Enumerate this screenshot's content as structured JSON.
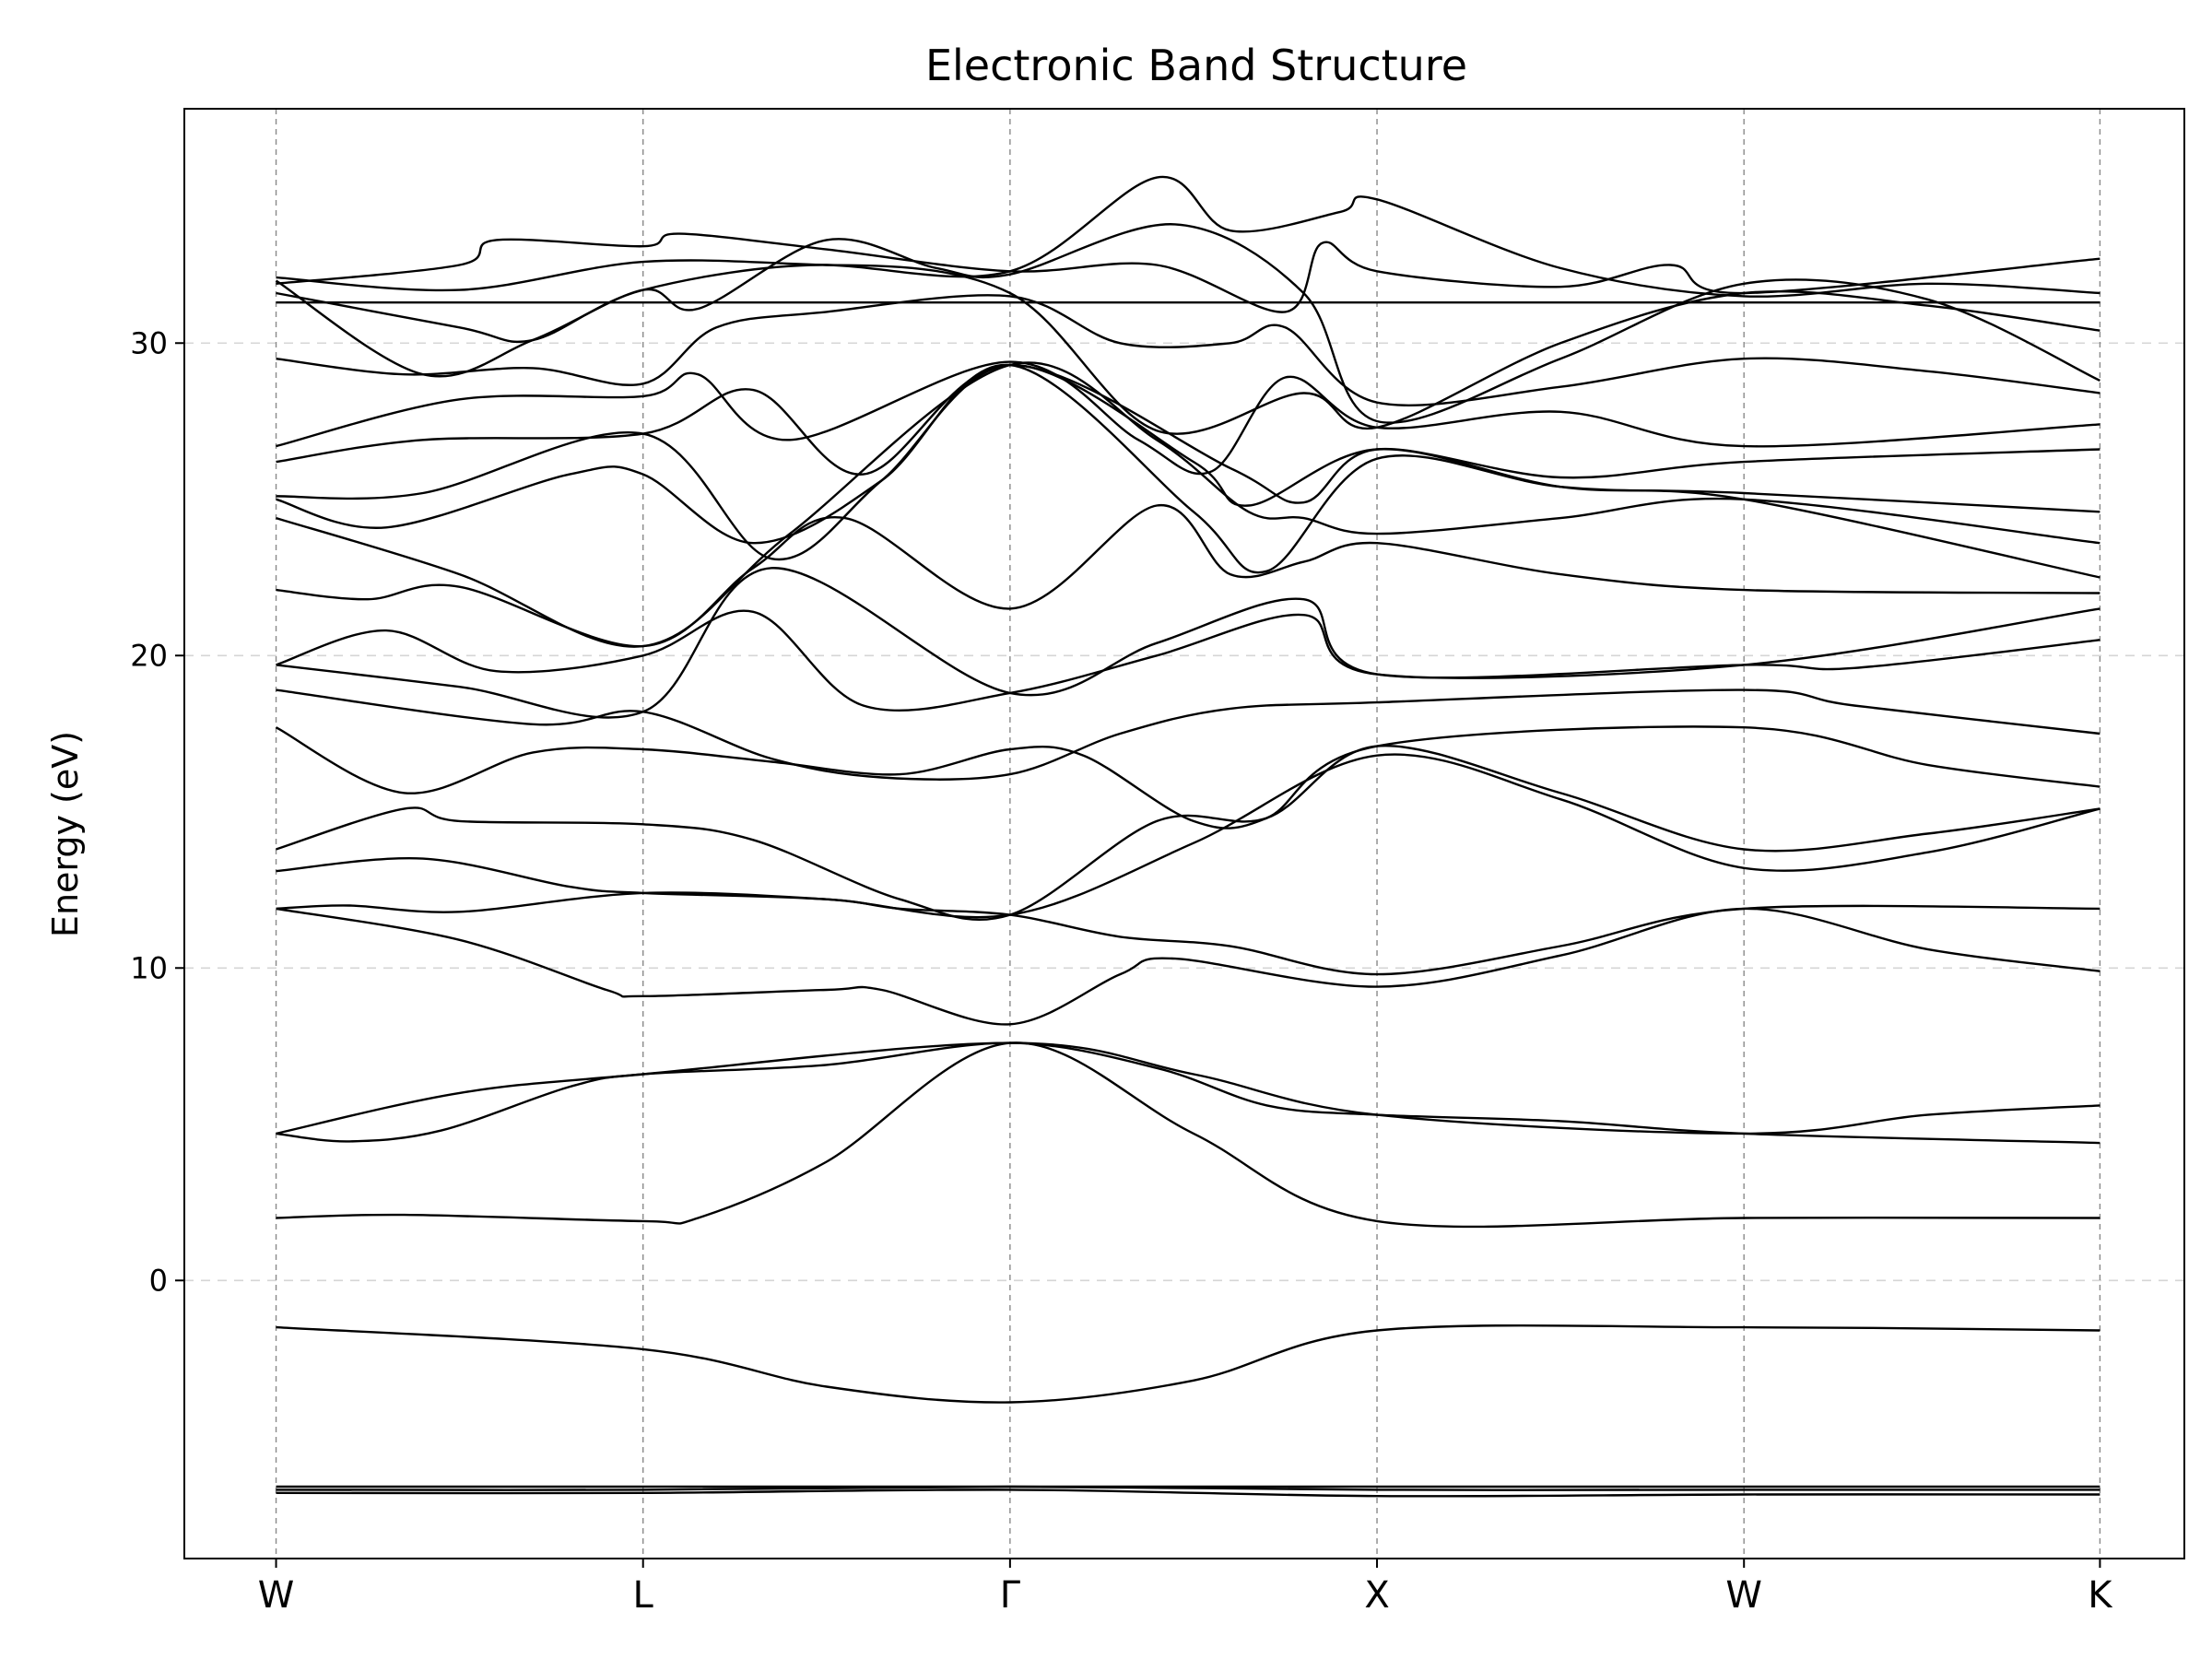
{
  "chart_data": {
    "type": "line",
    "title": "Electronic Band Structure",
    "xlabel": "",
    "ylabel": "Energy (eV)",
    "ylim": [
      -8.9,
      37.5
    ],
    "yticks": [
      0,
      10,
      20,
      30
    ],
    "grid": {
      "horizontal": true,
      "vertical_at_kpoints": true
    },
    "kpoints": [
      "W",
      "L",
      "Γ",
      "X",
      "W",
      "K"
    ],
    "kpath": [
      0,
      1,
      2,
      3,
      4,
      4.97
    ],
    "xlim": [
      -0.25,
      5.2
    ],
    "series": [
      {
        "points": [
          [
            0,
            -6.6
          ],
          [
            1,
            -6.6
          ],
          [
            2,
            -6.6
          ],
          [
            3,
            -6.6
          ],
          [
            4,
            -6.6
          ],
          [
            4.97,
            -6.6
          ]
        ]
      },
      {
        "points": [
          [
            0,
            -6.7
          ],
          [
            1,
            -6.7
          ],
          [
            2,
            -6.6
          ],
          [
            3,
            -6.7
          ],
          [
            4,
            -6.7
          ],
          [
            4.97,
            -6.7
          ]
        ]
      },
      {
        "points": [
          [
            0,
            -6.8
          ],
          [
            1,
            -6.8
          ],
          [
            2,
            -6.7
          ],
          [
            3,
            -6.9
          ],
          [
            4,
            -6.85
          ],
          [
            4.97,
            -6.85
          ]
        ]
      },
      {
        "points": [
          [
            0,
            -1.5
          ],
          [
            1,
            -2.2
          ],
          [
            1.5,
            -3.4
          ],
          [
            2,
            -3.9
          ],
          [
            2.5,
            -3.2
          ],
          [
            3,
            -1.6
          ],
          [
            4,
            -1.5
          ],
          [
            4.97,
            -1.6
          ]
        ]
      },
      {
        "points": [
          [
            0,
            2.0
          ],
          [
            0.35,
            2.1
          ],
          [
            1,
            1.9
          ],
          [
            1.15,
            2.0
          ],
          [
            1.5,
            3.8
          ],
          [
            2,
            7.6
          ],
          [
            2.5,
            4.7
          ],
          [
            3,
            1.9
          ],
          [
            4,
            2.0
          ],
          [
            4.97,
            2.0
          ]
        ]
      },
      {
        "points": [
          [
            0,
            4.7
          ],
          [
            0.2,
            4.45
          ],
          [
            0.45,
            4.8
          ],
          [
            0.8,
            6.2
          ],
          [
            1,
            6.6
          ],
          [
            1.5,
            6.9
          ],
          [
            2,
            7.6
          ],
          [
            2.4,
            6.8
          ],
          [
            2.7,
            5.6
          ],
          [
            3,
            5.3
          ],
          [
            3.5,
            5.1
          ],
          [
            4,
            4.7
          ],
          [
            4.97,
            4.4
          ]
        ]
      },
      {
        "points": [
          [
            0,
            4.7
          ],
          [
            0.5,
            6.0
          ],
          [
            1,
            6.6
          ],
          [
            2,
            7.6
          ],
          [
            2.5,
            6.6
          ],
          [
            3,
            5.3
          ],
          [
            4,
            4.7
          ],
          [
            4.5,
            5.3
          ],
          [
            4.97,
            5.6
          ]
        ]
      },
      {
        "points": [
          [
            0,
            11.9
          ],
          [
            0.5,
            10.9
          ],
          [
            0.9,
            9.3
          ],
          [
            1,
            9.1
          ],
          [
            1.5,
            9.3
          ],
          [
            1.65,
            9.3
          ],
          [
            2,
            8.2
          ],
          [
            2.3,
            9.8
          ],
          [
            2.45,
            10.3
          ],
          [
            3,
            9.4
          ],
          [
            3.5,
            10.4
          ],
          [
            4,
            11.9
          ],
          [
            4.5,
            10.6
          ],
          [
            4.97,
            9.9
          ]
        ]
      },
      {
        "points": [
          [
            0,
            11.9
          ],
          [
            0.2,
            12.0
          ],
          [
            0.5,
            11.8
          ],
          [
            1,
            12.4
          ],
          [
            1.5,
            12.2
          ],
          [
            1.7,
            11.9
          ],
          [
            2,
            11.7
          ],
          [
            2.3,
            11.0
          ],
          [
            2.6,
            10.7
          ],
          [
            3,
            9.8
          ],
          [
            3.5,
            10.7
          ],
          [
            4,
            11.9
          ],
          [
            4.97,
            11.9
          ]
        ]
      },
      {
        "points": [
          [
            0,
            13.1
          ],
          [
            0.4,
            13.5
          ],
          [
            0.8,
            12.6
          ],
          [
            1,
            12.4
          ],
          [
            1.5,
            12.2
          ],
          [
            2,
            11.7
          ],
          [
            2.5,
            14.0
          ],
          [
            3,
            16.8
          ],
          [
            3.5,
            15.4
          ],
          [
            4,
            13.2
          ],
          [
            4.5,
            13.7
          ],
          [
            4.97,
            15.1
          ]
        ]
      },
      {
        "points": [
          [
            0,
            13.8
          ],
          [
            0.35,
            15.1
          ],
          [
            0.5,
            14.7
          ],
          [
            1,
            14.6
          ],
          [
            1.3,
            14.1
          ],
          [
            1.7,
            12.2
          ],
          [
            2,
            11.7
          ],
          [
            2.4,
            14.7
          ],
          [
            2.7,
            14.8
          ],
          [
            3,
            17.1
          ],
          [
            3.5,
            15.6
          ],
          [
            4,
            13.8
          ],
          [
            4.5,
            14.3
          ],
          [
            4.97,
            15.1
          ]
        ]
      },
      {
        "points": [
          [
            0,
            17.7
          ],
          [
            0.35,
            15.6
          ],
          [
            0.7,
            16.9
          ],
          [
            1,
            17.0
          ],
          [
            1.35,
            16.6
          ],
          [
            1.7,
            16.2
          ],
          [
            2,
            17.0
          ],
          [
            2.2,
            16.8
          ],
          [
            2.5,
            14.7
          ],
          [
            2.7,
            14.8
          ],
          [
            3,
            17.1
          ],
          [
            4,
            17.7
          ],
          [
            4.5,
            16.5
          ],
          [
            4.97,
            15.8
          ]
        ]
      },
      {
        "points": [
          [
            0,
            18.9
          ],
          [
            0.7,
            17.8
          ],
          [
            1,
            18.2
          ],
          [
            1.35,
            16.7
          ],
          [
            1.65,
            16.1
          ],
          [
            2,
            16.2
          ],
          [
            2.3,
            17.5
          ],
          [
            2.6,
            18.3
          ],
          [
            3,
            18.5
          ],
          [
            4,
            18.9
          ],
          [
            4.3,
            18.4
          ],
          [
            4.97,
            17.5
          ]
        ]
      },
      {
        "points": [
          [
            0,
            19.7
          ],
          [
            0.3,
            20.8
          ],
          [
            0.6,
            19.5
          ],
          [
            1,
            20.0
          ],
          [
            1.3,
            21.4
          ],
          [
            1.6,
            18.4
          ],
          [
            2,
            18.8
          ],
          [
            2.4,
            20.0
          ],
          [
            2.8,
            21.3
          ],
          [
            3,
            19.4
          ],
          [
            4,
            19.7
          ],
          [
            4.97,
            21.5
          ]
        ]
      },
      {
        "points": [
          [
            0,
            19.7
          ],
          [
            0.5,
            19.0
          ],
          [
            1,
            18.2
          ],
          [
            1.35,
            22.8
          ],
          [
            2,
            18.8
          ],
          [
            2.4,
            20.4
          ],
          [
            2.8,
            21.8
          ],
          [
            3,
            19.4
          ],
          [
            4,
            19.7
          ],
          [
            4.3,
            19.6
          ],
          [
            4.97,
            20.5
          ]
        ]
      },
      {
        "points": [
          [
            0,
            22.1
          ],
          [
            0.25,
            21.8
          ],
          [
            0.5,
            22.2
          ],
          [
            1,
            20.3
          ],
          [
            1.3,
            22.8
          ],
          [
            1.55,
            24.4
          ],
          [
            2,
            21.5
          ],
          [
            2.4,
            24.8
          ],
          [
            2.6,
            22.6
          ],
          [
            2.8,
            23.0
          ],
          [
            3,
            23.6
          ],
          [
            3.5,
            22.6
          ],
          [
            4,
            22.1
          ],
          [
            4.97,
            22.0
          ]
        ]
      },
      {
        "points": [
          [
            0,
            24.4
          ],
          [
            0.5,
            22.6
          ],
          [
            1,
            20.3
          ],
          [
            1.4,
            23.9
          ],
          [
            2,
            29.3
          ],
          [
            2.4,
            26.9
          ],
          [
            2.65,
            24.6
          ],
          [
            2.8,
            24.4
          ],
          [
            3,
            23.9
          ],
          [
            3.5,
            24.4
          ],
          [
            4,
            25.0
          ],
          [
            4.97,
            23.6
          ]
        ]
      },
      {
        "points": [
          [
            0,
            25.0
          ],
          [
            0.3,
            24.1
          ],
          [
            0.8,
            25.8
          ],
          [
            1,
            25.8
          ],
          [
            1.3,
            23.6
          ],
          [
            1.65,
            25.6
          ],
          [
            2,
            29.3
          ],
          [
            2.5,
            24.6
          ],
          [
            2.7,
            22.7
          ],
          [
            3,
            26.3
          ],
          [
            3.5,
            25.4
          ],
          [
            4,
            25.2
          ],
          [
            4.97,
            24.6
          ]
        ]
      },
      {
        "points": [
          [
            0,
            25.1
          ],
          [
            0.4,
            25.2
          ],
          [
            1,
            27.1
          ],
          [
            1.35,
            23.1
          ],
          [
            1.65,
            25.6
          ],
          [
            2,
            29.3
          ],
          [
            2.5,
            26.2
          ],
          [
            2.65,
            24.8
          ],
          [
            3,
            26.6
          ],
          [
            3.5,
            25.4
          ],
          [
            4,
            25.0
          ],
          [
            4.97,
            22.5
          ]
        ]
      },
      {
        "points": [
          [
            0,
            26.2
          ],
          [
            0.4,
            26.9
          ],
          [
            1,
            27.1
          ],
          [
            1.3,
            28.5
          ],
          [
            1.6,
            25.8
          ],
          [
            2,
            29.3
          ],
          [
            2.6,
            26.0
          ],
          [
            2.8,
            24.9
          ],
          [
            3,
            26.6
          ],
          [
            3.5,
            25.7
          ],
          [
            4,
            26.2
          ],
          [
            4.97,
            26.6
          ]
        ]
      },
      {
        "points": [
          [
            0,
            26.7
          ],
          [
            0.5,
            28.2
          ],
          [
            1,
            28.3
          ],
          [
            1.15,
            29.0
          ],
          [
            1.4,
            26.9
          ],
          [
            2,
            29.4
          ],
          [
            2.35,
            26.9
          ],
          [
            2.55,
            25.9
          ],
          [
            2.75,
            28.9
          ],
          [
            3,
            27.3
          ],
          [
            3.5,
            27.8
          ],
          [
            4,
            26.7
          ],
          [
            4.97,
            27.4
          ]
        ]
      },
      {
        "points": [
          [
            0,
            29.5
          ],
          [
            0.35,
            29.0
          ],
          [
            0.7,
            29.2
          ],
          [
            1,
            28.7
          ],
          [
            1.2,
            30.5
          ],
          [
            1.5,
            31.0
          ],
          [
            2,
            31.5
          ],
          [
            2.3,
            30.0
          ],
          [
            2.6,
            30.0
          ],
          [
            2.75,
            30.5
          ],
          [
            3,
            28.1
          ],
          [
            3.5,
            28.6
          ],
          [
            4,
            29.5
          ],
          [
            4.5,
            29.1
          ],
          [
            4.97,
            28.4
          ]
        ]
      },
      {
        "points": [
          [
            0,
            31.3
          ],
          [
            4.97,
            31.3
          ]
        ]
      },
      {
        "points": [
          [
            0,
            31.6
          ],
          [
            0.5,
            30.5
          ],
          [
            0.7,
            30.1
          ],
          [
            1,
            31.7
          ],
          [
            1.5,
            32.5
          ],
          [
            2,
            31.6
          ],
          [
            2.4,
            27.2
          ],
          [
            2.8,
            28.4
          ],
          [
            3,
            27.3
          ],
          [
            3.5,
            30.0
          ],
          [
            4,
            31.6
          ],
          [
            4.5,
            31.2
          ],
          [
            4.97,
            30.4
          ]
        ]
      },
      {
        "points": [
          [
            0,
            32.0
          ],
          [
            0.4,
            29.0
          ],
          [
            0.7,
            30.1
          ],
          [
            1,
            31.7
          ],
          [
            1.15,
            31.1
          ],
          [
            1.5,
            33.3
          ],
          [
            1.8,
            32.4
          ],
          [
            2,
            32.2
          ],
          [
            2.45,
            33.8
          ],
          [
            2.8,
            31.6
          ],
          [
            3,
            27.5
          ],
          [
            3.5,
            29.5
          ],
          [
            4,
            31.9
          ],
          [
            4.5,
            31.4
          ],
          [
            4.97,
            28.8
          ]
        ]
      },
      {
        "points": [
          [
            0,
            32.1
          ],
          [
            0.5,
            31.7
          ],
          [
            1,
            32.6
          ],
          [
            1.5,
            32.5
          ],
          [
            2,
            32.3
          ],
          [
            2.4,
            35.3
          ],
          [
            2.6,
            33.6
          ],
          [
            2.9,
            34.2
          ],
          [
            3,
            34.6
          ],
          [
            3.5,
            32.4
          ],
          [
            4,
            31.5
          ],
          [
            4.5,
            31.9
          ],
          [
            4.97,
            31.6
          ]
        ]
      },
      {
        "points": [
          [
            0,
            31.9
          ],
          [
            0.5,
            32.5
          ],
          [
            0.6,
            33.3
          ],
          [
            1,
            33.1
          ],
          [
            1.1,
            33.5
          ],
          [
            1.5,
            33.0
          ],
          [
            2,
            32.3
          ],
          [
            2.4,
            32.5
          ],
          [
            2.75,
            31.0
          ],
          [
            2.85,
            33.2
          ],
          [
            3,
            32.3
          ],
          [
            3.5,
            31.8
          ],
          [
            3.8,
            32.5
          ],
          [
            4,
            31.6
          ],
          [
            4.97,
            32.7
          ]
        ]
      }
    ]
  }
}
